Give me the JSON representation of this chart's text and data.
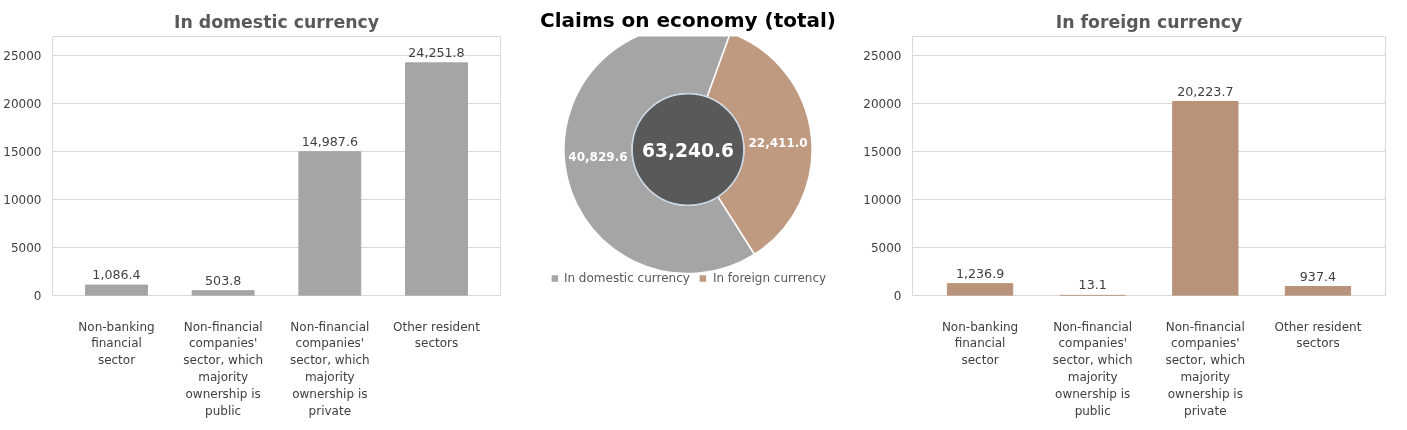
{
  "chart_data": [
    {
      "type": "bar",
      "title": "In domestic currency",
      "categories": [
        "Non-banking financial sector",
        "Non-financial companies' sector, which majority ownership is public",
        "Non-financial companies' sector, which majority ownership is private",
        "Other resident sectors"
      ],
      "values": [
        1086.4,
        503.8,
        14987.6,
        24251.8
      ],
      "value_labels": [
        "1,086.4",
        "503.8",
        "14,987.6",
        "24,251.8"
      ],
      "color": "#a5a5a5",
      "ylim": [
        0,
        27000
      ],
      "yticks": [
        0,
        5000,
        10000,
        15000,
        20000,
        25000
      ],
      "grid": "y"
    },
    {
      "type": "donut",
      "title": "Claims on economy (total)",
      "categories": [
        "In domestic currency",
        "In foreign currency"
      ],
      "values": [
        40829.6,
        22411.0
      ],
      "value_labels": [
        "40,829.6",
        "22,411.0"
      ],
      "colors": [
        "#a5a5a5",
        "#c09a80"
      ],
      "annotations": [
        "63,240.6"
      ],
      "legend": "bottom"
    },
    {
      "type": "bar",
      "title": "In foreign currency",
      "categories": [
        "Non-banking financial sector",
        "Non-financial companies' sector, which majority ownership is public",
        "Non-financial companies' sector, which majority ownership is private",
        "Other resident sectors"
      ],
      "values": [
        1236.9,
        13.1,
        20223.7,
        937.4
      ],
      "value_labels": [
        "1,236.9",
        "13.1",
        "20,223.7",
        "937.4"
      ],
      "color": "#b8937a",
      "ylim": [
        0,
        27000
      ],
      "yticks": [
        0,
        5000,
        10000,
        15000,
        20000,
        25000
      ],
      "grid": "y"
    }
  ]
}
